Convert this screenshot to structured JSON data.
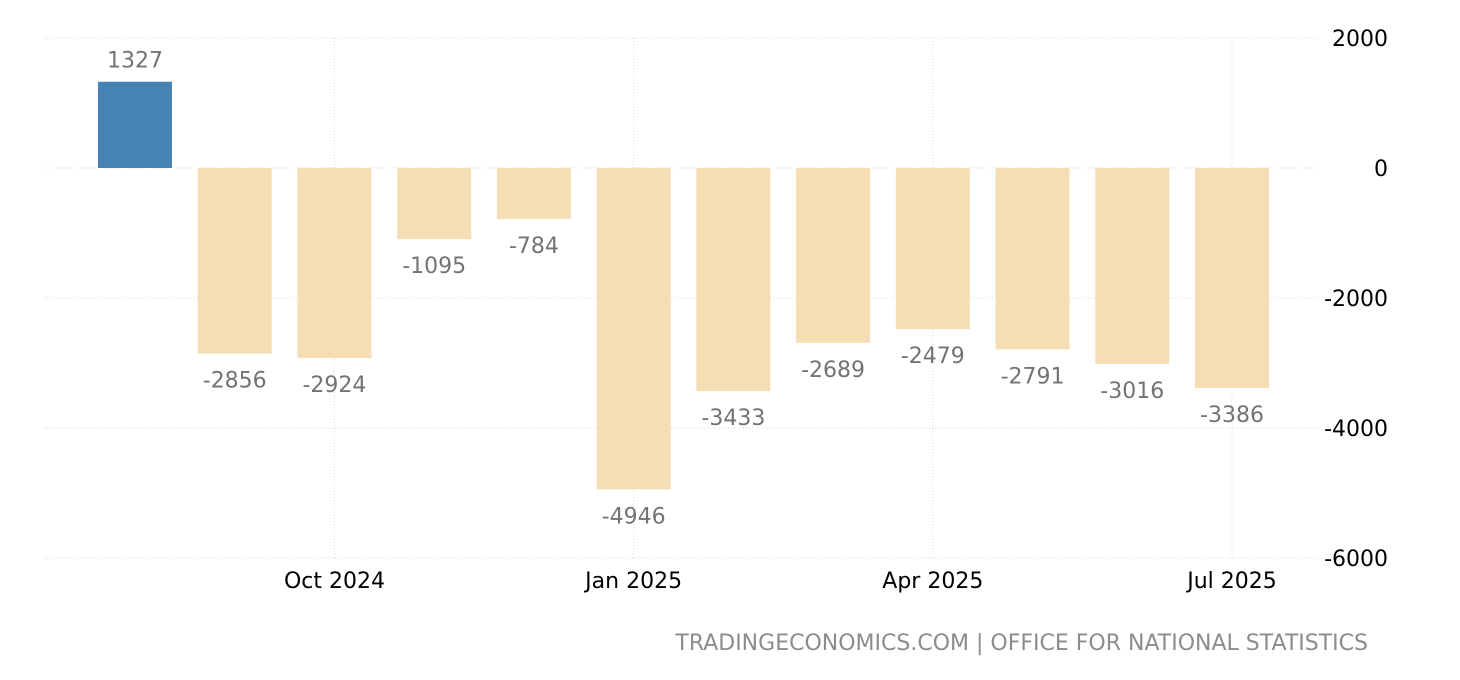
{
  "chart_data": {
    "type": "bar",
    "categories": [
      "Aug 2024",
      "Sep 2024",
      "Oct 2024",
      "Nov 2024",
      "Dec 2024",
      "Jan 2025",
      "Feb 2025",
      "Mar 2025",
      "Apr 2025",
      "May 2025",
      "Jun 2025",
      "Jul 2025"
    ],
    "values": [
      1327,
      -2856,
      -2924,
      -1095,
      -784,
      -4946,
      -3433,
      -2689,
      -2479,
      -2791,
      -3016,
      -3386
    ],
    "data_labels": [
      "1327",
      "-2856",
      "-2924",
      "-1095",
      "-784",
      "-4946",
      "-3433",
      "-2689",
      "-2479",
      "-2791",
      "-3016",
      "-3386"
    ],
    "ylim": [
      -6000,
      2000
    ],
    "y_ticks": [
      2000,
      0,
      -2000,
      -4000,
      -6000
    ],
    "y_tick_labels": [
      "2000",
      "0",
      "-2000",
      "-4000",
      "-6000"
    ],
    "x_tick_labels": [
      "Oct 2024",
      "Jan 2025",
      "Apr 2025",
      "Jul 2025"
    ],
    "x_tick_months": [
      "Oct 2024",
      "Jan 2025",
      "Apr 2025",
      "Jul 2025"
    ],
    "grid": true,
    "y_axis_position": "right",
    "colors": {
      "positive": "#4682b4",
      "negative": "#f5deb3"
    },
    "title": "",
    "xlabel": "",
    "ylabel": ""
  },
  "source_text": "TRADINGECONOMICS.COM | OFFICE FOR NATIONAL STATISTICS"
}
